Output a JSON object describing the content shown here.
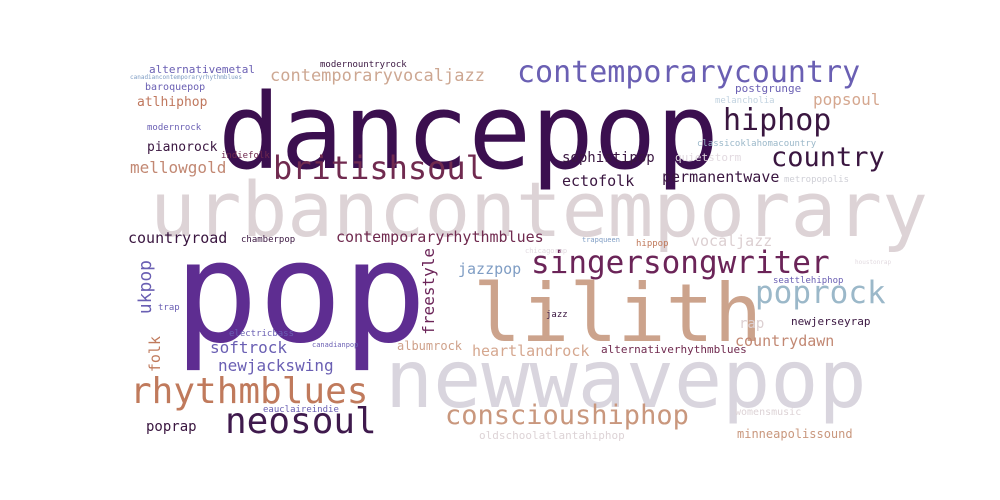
{
  "words": [
    {
      "text": "dancepop",
      "color": "#3b0f4f"
    },
    {
      "text": "urbancontemporary",
      "color": "#ddd3d6"
    },
    {
      "text": "pop",
      "color": "#5e2d91"
    },
    {
      "text": "newwavepop",
      "color": "#d9d5de"
    },
    {
      "text": "lilith",
      "color": "#cca38c"
    },
    {
      "text": "contemporarycountry",
      "color": "#6a5fb3"
    },
    {
      "text": "singersongwriter",
      "color": "#6b2458"
    },
    {
      "text": "rhythmblues",
      "color": "#c07a5c"
    },
    {
      "text": "neosoul",
      "color": "#3f1a4d"
    },
    {
      "text": "conscioushiphop",
      "color": "#c9977d"
    },
    {
      "text": "britishsoul",
      "color": "#702a4f"
    },
    {
      "text": "hiphop",
      "color": "#3a1640"
    },
    {
      "text": "country",
      "color": "#3a1640"
    },
    {
      "text": "poprock",
      "color": "#9bb8c9"
    },
    {
      "text": "contemporaryvocaljazz",
      "color": "#cda792"
    },
    {
      "text": "popsoul",
      "color": "#d5a78f"
    },
    {
      "text": "mellowgold",
      "color": "#c28873"
    },
    {
      "text": "ectofolk",
      "color": "#3a1640"
    },
    {
      "text": "permanentwave",
      "color": "#3a1640"
    },
    {
      "text": "sophistipop",
      "color": "#3a1640"
    },
    {
      "text": "pianorock",
      "color": "#3a1640"
    },
    {
      "text": "atlhiphop",
      "color": "#c0785e"
    },
    {
      "text": "countryroad",
      "color": "#3a1640"
    },
    {
      "text": "contemporaryrhythmblues",
      "color": "#702a4f"
    },
    {
      "text": "vocaljazz",
      "color": "#dccfd1"
    },
    {
      "text": "jazzpop",
      "color": "#7f9dc4"
    },
    {
      "text": "ukpop",
      "color": "#6a5fb3"
    },
    {
      "text": "freestyle",
      "color": "#6b2458"
    },
    {
      "text": "softrock",
      "color": "#6a5fb3"
    },
    {
      "text": "folk",
      "color": "#c07a5c"
    },
    {
      "text": "newjackswing",
      "color": "#6a5fb3"
    },
    {
      "text": "heartlandrock",
      "color": "#d5a78f"
    },
    {
      "text": "countrydawn",
      "color": "#c28873"
    },
    {
      "text": "alternativerhythmblues",
      "color": "#702a4f"
    },
    {
      "text": "albumrock",
      "color": "#cfa18a"
    },
    {
      "text": "rap",
      "color": "#dccfd1"
    },
    {
      "text": "newjerseyrap",
      "color": "#3a1640"
    },
    {
      "text": "poprap",
      "color": "#3a1640"
    },
    {
      "text": "minneapolissound",
      "color": "#c9977d"
    },
    {
      "text": "oldschoolatlantahiphop",
      "color": "#ddd3d6"
    },
    {
      "text": "womensmusic",
      "color": "#ddd3d6"
    },
    {
      "text": "postgrunge",
      "color": "#6a5fb3"
    },
    {
      "text": "melancholia",
      "color": "#c2d3e0"
    },
    {
      "text": "classicoklahomacountry",
      "color": "#9bb8c9"
    },
    {
      "text": "quietstorm",
      "color": "#e2dae0"
    },
    {
      "text": "metropopolis",
      "color": "#cfcfd6"
    },
    {
      "text": "alternativemetal",
      "color": "#6a5fb3"
    },
    {
      "text": "modernountryrock",
      "color": "#3a1640"
    },
    {
      "text": "canadiancontemporaryrhythmblues",
      "color": "#7f9dc4"
    },
    {
      "text": "baroquepop",
      "color": "#6a5fb3"
    },
    {
      "text": "modernrock",
      "color": "#6a5fb3"
    },
    {
      "text": "indiefolk",
      "color": "#702a4f"
    },
    {
      "text": "chamberpop",
      "color": "#3a1640"
    },
    {
      "text": "trap",
      "color": "#6a5fb3"
    },
    {
      "text": "electricbass",
      "color": "#6a5fb3"
    },
    {
      "text": "canadianpop",
      "color": "#6a5fb3"
    },
    {
      "text": "eauclaireindie",
      "color": "#6a5fb3"
    },
    {
      "text": "chicagorap",
      "color": "#e2dae0"
    },
    {
      "text": "trapqueen",
      "color": "#7f9dc4"
    },
    {
      "text": "hippop",
      "color": "#c07a5c"
    },
    {
      "text": "houstonrap",
      "color": "#e2dae0"
    },
    {
      "text": "seattlehiphop",
      "color": "#6a5fb3"
    },
    {
      "text": "jazz",
      "color": "#3a1640"
    }
  ]
}
